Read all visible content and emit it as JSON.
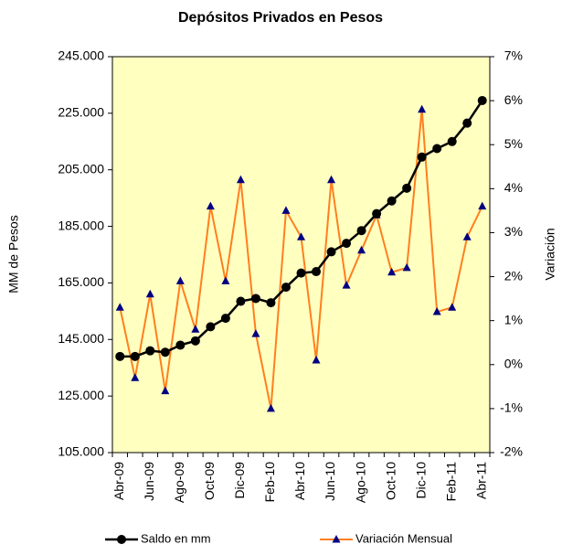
{
  "chart_data": {
    "type": "line",
    "title": "Depósitos Privados en Pesos",
    "y_label": "MM de Pesos",
    "y2_label": "Variación",
    "categories": [
      "Abr-09",
      null,
      "Jun-09",
      null,
      "Ago-09",
      null,
      "Oct-09",
      null,
      "Dic-09",
      null,
      "Feb-10",
      null,
      "Abr-10",
      null,
      "Jun-10",
      null,
      "Ago-10",
      null,
      "Oct-10",
      null,
      "Dic-10",
      null,
      "Feb-11",
      null,
      "Abr-11"
    ],
    "series": [
      {
        "name": "Saldo en mm",
        "color": "#000000",
        "marker": "circle",
        "marker_color": "#000000",
        "axis": "y",
        "values": [
          139000,
          139000,
          141000,
          140500,
          143000,
          144500,
          149500,
          152500,
          158500,
          159500,
          158000,
          163500,
          168500,
          169000,
          176000,
          179000,
          183500,
          189500,
          194000,
          198500,
          209500,
          212500,
          215000,
          221500,
          229500
        ]
      },
      {
        "name": "Variación Mensual",
        "color": "#ff7f1f",
        "marker": "triangle",
        "marker_color": "#000080",
        "axis": "y2",
        "values": [
          1.3,
          -0.3,
          1.6,
          -0.6,
          1.9,
          0.8,
          3.6,
          1.9,
          4.2,
          0.7,
          -1.0,
          3.5,
          2.9,
          0.1,
          4.2,
          1.8,
          2.6,
          3.4,
          2.1,
          2.2,
          5.8,
          1.2,
          1.3,
          2.9,
          3.6
        ]
      }
    ],
    "ylim": [
      105000,
      245000
    ],
    "yticks": [
      {
        "value": 105000,
        "label": "105.000"
      },
      {
        "value": 125000,
        "label": "125.000"
      },
      {
        "value": 145000,
        "label": "145.000"
      },
      {
        "value": 165000,
        "label": "165.000"
      },
      {
        "value": 185000,
        "label": "185.000"
      },
      {
        "value": 205000,
        "label": "205.000"
      },
      {
        "value": 225000,
        "label": "225.000"
      },
      {
        "value": 245000,
        "label": "245.000"
      }
    ],
    "y2lim": [
      -2,
      7
    ],
    "y2ticks": [
      {
        "value": -2,
        "label": "-2%"
      },
      {
        "value": -1,
        "label": "-1%"
      },
      {
        "value": 0,
        "label": "0%"
      },
      {
        "value": 1,
        "label": "1%"
      },
      {
        "value": 2,
        "label": "2%"
      },
      {
        "value": 3,
        "label": "3%"
      },
      {
        "value": 4,
        "label": "4%"
      },
      {
        "value": 5,
        "label": "5%"
      },
      {
        "value": 6,
        "label": "6%"
      },
      {
        "value": 7,
        "label": "7%"
      }
    ],
    "plot_background": "#ffffc0",
    "grid": false,
    "legend": "bottom"
  }
}
